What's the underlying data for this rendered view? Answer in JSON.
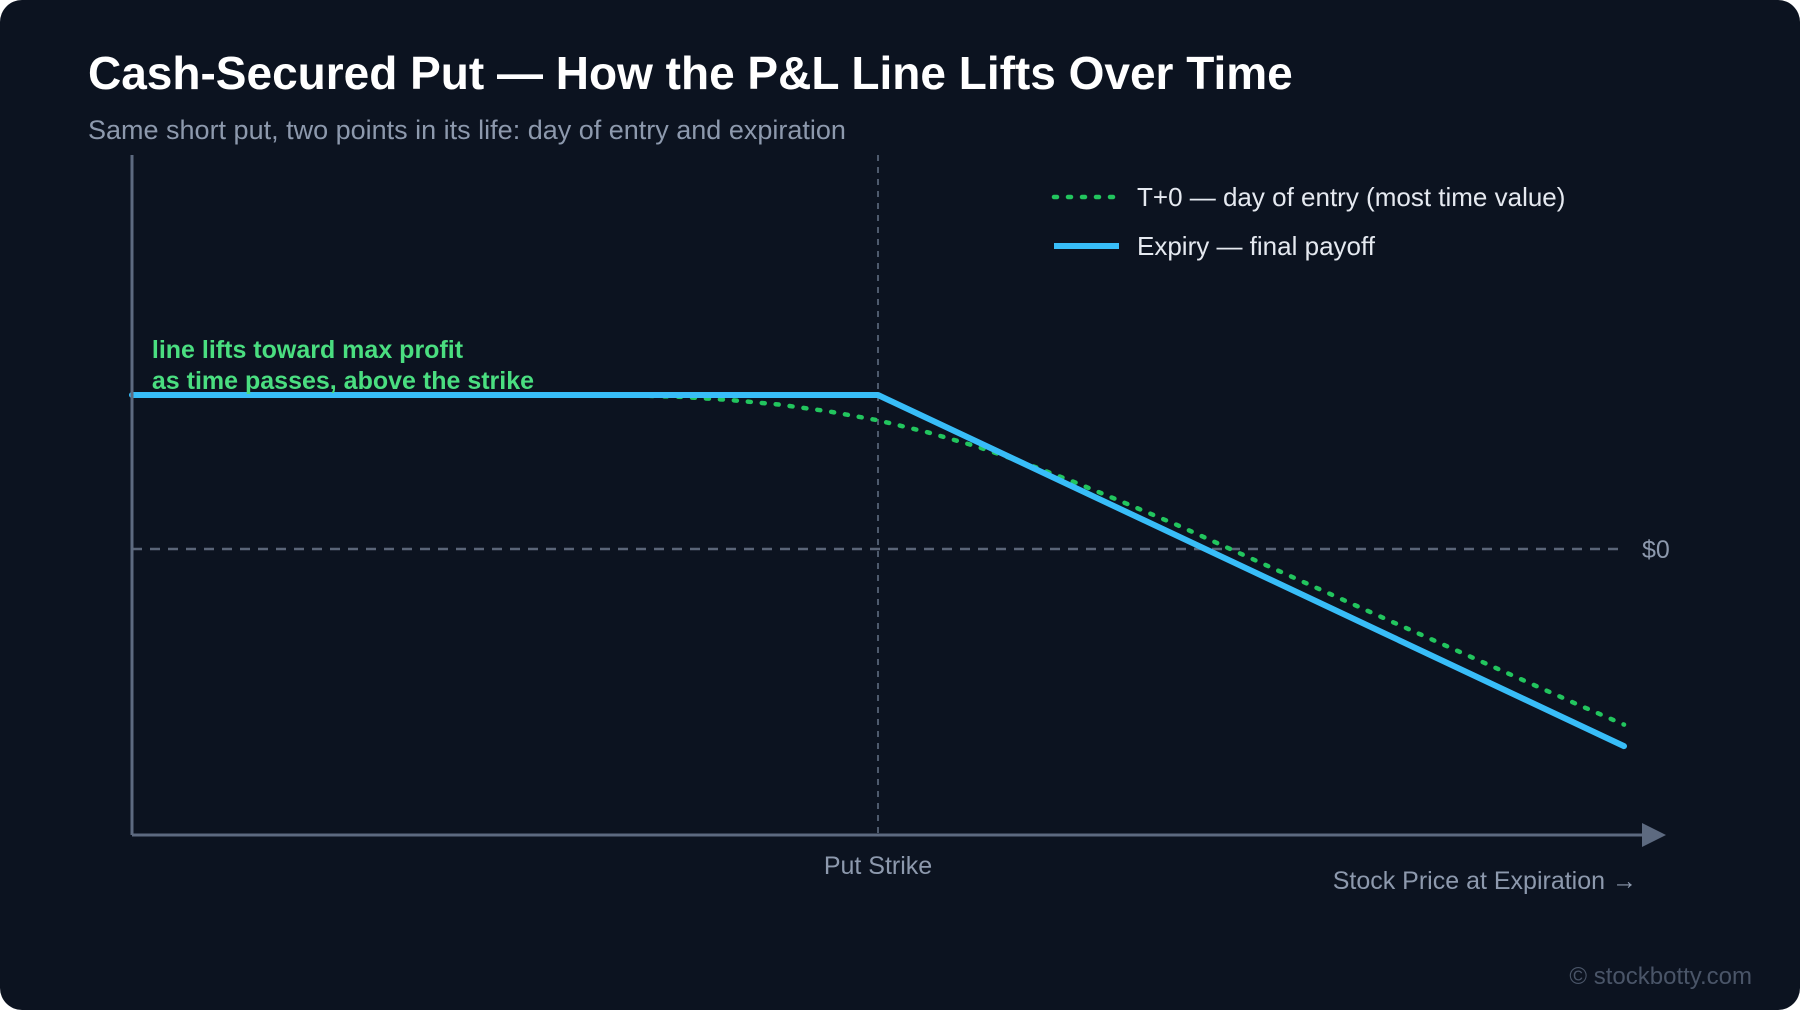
{
  "title": "Cash-Secured Put — How the P&L Line Lifts Over Time",
  "subtitle": "Same short put, two points in its life: day of entry and expiration",
  "watermark": "© stockbotty.com",
  "colors": {
    "background": "#0c1320",
    "axis": "#5d6a80",
    "guide": "#4e5a6d",
    "t0": "#22c55e",
    "expiry": "#38bdf8",
    "annotation": "#4ade80",
    "muted_text": "#8d99ad"
  },
  "chart_data": {
    "type": "line",
    "title": "Cash-Secured Put — How the P&L Line Lifts Over Time",
    "subtitle": "Same short put, two points in its life: day of entry and expiration",
    "xlabel": "Stock Price at Expiration →",
    "ylabel": "",
    "x_ticks": [],
    "y_ticks": [],
    "strike_label": "Put Strike",
    "zero_label": "$0",
    "grid": false,
    "legend_position": "top-right",
    "strike": 0,
    "xlim": [
      -150,
      150
    ],
    "ylim": [
      -100,
      100
    ],
    "series": [
      {
        "name": "T+0 — day of entry (most time value)",
        "style": "dotted",
        "color": "#22c55e",
        "x": [
          -150,
          -50,
          -40,
          -30,
          -20,
          -10,
          0,
          10,
          20,
          30,
          40,
          50,
          60,
          80,
          100,
          120,
          140,
          150
        ],
        "y": [
          50.0,
          49.9,
          49.4,
          48.4,
          46.9,
          44.7,
          41.8,
          37.9,
          33.2,
          27.6,
          21.4,
          14.7,
          7.9,
          -6.7,
          -21.2,
          -35.6,
          -50.0,
          -57.0
        ]
      },
      {
        "name": "Expiry — final payoff",
        "style": "solid",
        "color": "#38bdf8",
        "x": [
          -150,
          0,
          150
        ],
        "y": [
          50,
          50,
          -64
        ]
      }
    ],
    "annotations": [
      {
        "text": "line lifts toward max profit",
        "x": -146,
        "y": 62
      },
      {
        "text": "as time passes, above the strike",
        "x": -146,
        "y": 52
      }
    ]
  }
}
